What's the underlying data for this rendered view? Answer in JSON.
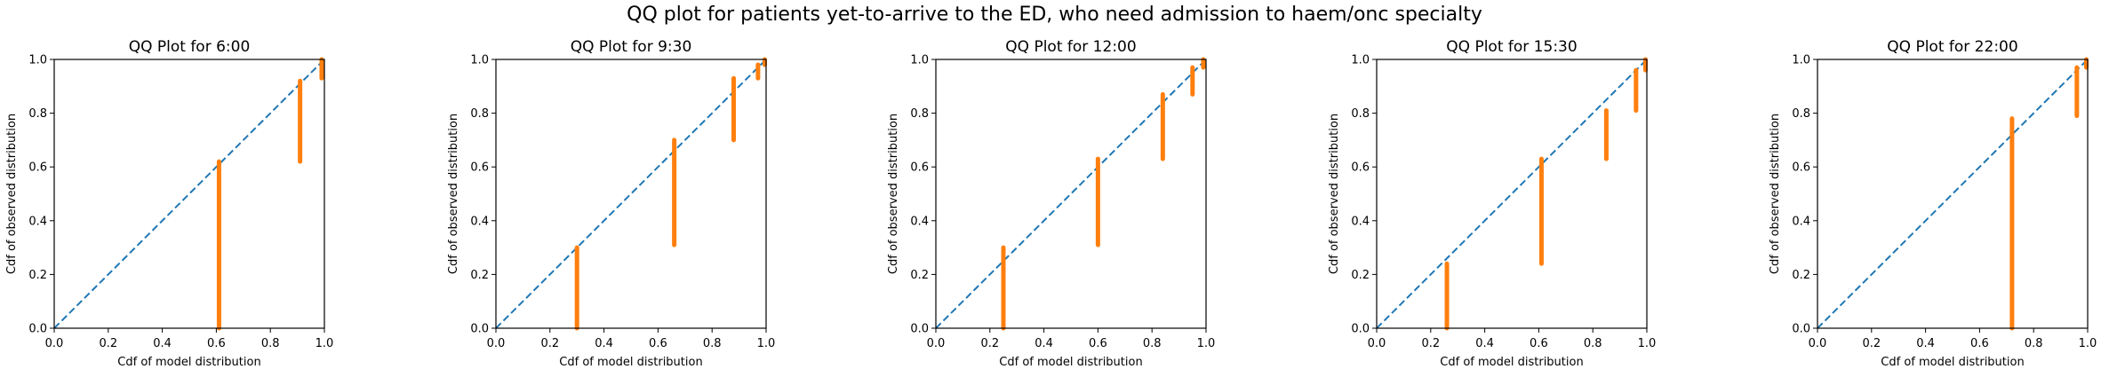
{
  "figure": {
    "title": "QQ plot for patients yet-to-arrive to the ED, who need admission to haem/onc specialty"
  },
  "colors": {
    "reference_line": "#1f77b4",
    "observed_points": "#ff7f0e",
    "axis": "#000000"
  },
  "chart_data": [
    {
      "type": "scatter",
      "title": "QQ Plot for 6:00",
      "xlabel": "Cdf of model distribution",
      "ylabel": "Cdf of observed distribution",
      "xlim": [
        0.0,
        1.0
      ],
      "ylim": [
        0.0,
        1.0
      ],
      "xticks": [
        "0.0",
        "0.2",
        "0.4",
        "0.6",
        "0.8",
        "1.0"
      ],
      "yticks": [
        "0.0",
        "0.2",
        "0.4",
        "0.6",
        "0.8",
        "1.0"
      ],
      "grid": false,
      "reference_line": {
        "style": "dashed",
        "from": [
          0,
          0
        ],
        "to": [
          1,
          1
        ]
      },
      "observed_segments": [
        {
          "x": 0.61,
          "y_from": 0.0,
          "y_to": 0.62
        },
        {
          "x": 0.91,
          "y_from": 0.62,
          "y_to": 0.92
        },
        {
          "x": 0.99,
          "y_from": 0.93,
          "y_to": 1.0
        }
      ]
    },
    {
      "type": "scatter",
      "title": "QQ Plot for 9:30",
      "xlabel": "Cdf of model distribution",
      "ylabel": "Cdf of observed distribution",
      "xlim": [
        0.0,
        1.0
      ],
      "ylim": [
        0.0,
        1.0
      ],
      "xticks": [
        "0.0",
        "0.2",
        "0.4",
        "0.6",
        "0.8",
        "1.0"
      ],
      "yticks": [
        "0.0",
        "0.2",
        "0.4",
        "0.6",
        "0.8",
        "1.0"
      ],
      "grid": false,
      "reference_line": {
        "style": "dashed",
        "from": [
          0,
          0
        ],
        "to": [
          1,
          1
        ]
      },
      "observed_segments": [
        {
          "x": 0.3,
          "y_from": 0.0,
          "y_to": 0.3
        },
        {
          "x": 0.66,
          "y_from": 0.31,
          "y_to": 0.7
        },
        {
          "x": 0.88,
          "y_from": 0.7,
          "y_to": 0.93
        },
        {
          "x": 0.97,
          "y_from": 0.93,
          "y_to": 0.98
        },
        {
          "x": 0.995,
          "y_from": 0.98,
          "y_to": 1.0
        }
      ]
    },
    {
      "type": "scatter",
      "title": "QQ Plot for 12:00",
      "xlabel": "Cdf of model distribution",
      "ylabel": "Cdf of observed distribution",
      "xlim": [
        0.0,
        1.0
      ],
      "ylim": [
        0.0,
        1.0
      ],
      "xticks": [
        "0.0",
        "0.2",
        "0.4",
        "0.6",
        "0.8",
        "1.0"
      ],
      "yticks": [
        "0.0",
        "0.2",
        "0.4",
        "0.6",
        "0.8",
        "1.0"
      ],
      "grid": false,
      "reference_line": {
        "style": "dashed",
        "from": [
          0,
          0
        ],
        "to": [
          1,
          1
        ]
      },
      "observed_segments": [
        {
          "x": 0.25,
          "y_from": 0.0,
          "y_to": 0.3
        },
        {
          "x": 0.6,
          "y_from": 0.31,
          "y_to": 0.63
        },
        {
          "x": 0.84,
          "y_from": 0.63,
          "y_to": 0.87
        },
        {
          "x": 0.95,
          "y_from": 0.87,
          "y_to": 0.97
        },
        {
          "x": 0.99,
          "y_from": 0.97,
          "y_to": 1.0
        }
      ]
    },
    {
      "type": "scatter",
      "title": "QQ Plot for 15:30",
      "xlabel": "Cdf of model distribution",
      "ylabel": "Cdf of observed distribution",
      "xlim": [
        0.0,
        1.0
      ],
      "ylim": [
        0.0,
        1.0
      ],
      "xticks": [
        "0.0",
        "0.2",
        "0.4",
        "0.6",
        "0.8",
        "1.0"
      ],
      "yticks": [
        "0.0",
        "0.2",
        "0.4",
        "0.6",
        "0.8",
        "1.0"
      ],
      "grid": false,
      "reference_line": {
        "style": "dashed",
        "from": [
          0,
          0
        ],
        "to": [
          1,
          1
        ]
      },
      "observed_segments": [
        {
          "x": 0.26,
          "y_from": 0.0,
          "y_to": 0.24
        },
        {
          "x": 0.61,
          "y_from": 0.24,
          "y_to": 0.63
        },
        {
          "x": 0.85,
          "y_from": 0.63,
          "y_to": 0.81
        },
        {
          "x": 0.96,
          "y_from": 0.81,
          "y_to": 0.96
        },
        {
          "x": 0.995,
          "y_from": 0.96,
          "y_to": 1.0
        }
      ]
    },
    {
      "type": "scatter",
      "title": "QQ Plot for 22:00",
      "xlabel": "Cdf of model distribution",
      "ylabel": "Cdf of observed distribution",
      "xlim": [
        0.0,
        1.0
      ],
      "ylim": [
        0.0,
        1.0
      ],
      "xticks": [
        "0.0",
        "0.2",
        "0.4",
        "0.6",
        "0.8",
        "1.0"
      ],
      "yticks": [
        "0.0",
        "0.2",
        "0.4",
        "0.6",
        "0.8",
        "1.0"
      ],
      "grid": false,
      "reference_line": {
        "style": "dashed",
        "from": [
          0,
          0
        ],
        "to": [
          1,
          1
        ]
      },
      "observed_segments": [
        {
          "x": 0.72,
          "y_from": 0.0,
          "y_to": 0.78
        },
        {
          "x": 0.96,
          "y_from": 0.79,
          "y_to": 0.97
        },
        {
          "x": 0.995,
          "y_from": 0.97,
          "y_to": 1.0
        }
      ]
    }
  ]
}
